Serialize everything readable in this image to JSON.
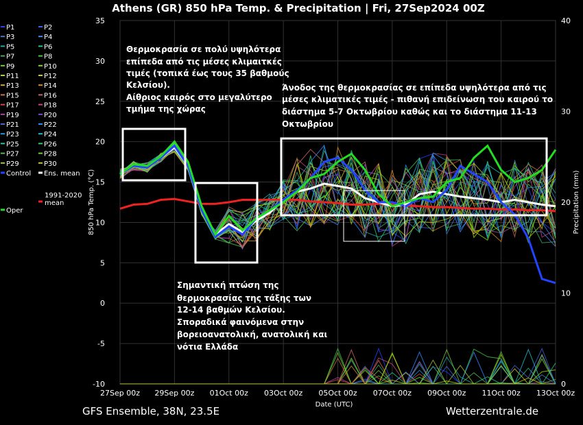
{
  "chart_data": {
    "type": "line",
    "title": "Athens  (GR)  850 hPa Temp. & Precipitation | Fri, 27Sep2024 00Z",
    "xlabel": "Date (UTC)",
    "ylabel": "850 hPa Temp. (°C)",
    "y2label": "Precipitation (mm)",
    "ylim": [
      -10,
      35
    ],
    "y2lim": [
      0,
      40
    ],
    "yticks": [
      "35",
      "30",
      "25",
      "20",
      "15",
      "10",
      "5",
      "0",
      "-5",
      "-10"
    ],
    "y2ticks": [
      "40",
      "30",
      "20",
      "10",
      "0"
    ],
    "xticks": [
      "27Sep 00z",
      "29Sep 00z",
      "01Oct 00z",
      "03Oct 00z",
      "05Oct 00z",
      "07Oct 00z",
      "09Oct 00z",
      "11Oct 00z",
      "13Oct 00z"
    ],
    "x_hours": [
      0,
      12,
      24,
      36,
      48,
      60,
      72,
      84,
      96,
      108,
      120,
      132,
      144,
      156,
      168,
      180,
      192,
      204,
      216,
      228,
      240,
      252,
      264,
      276,
      288,
      300,
      312,
      324,
      336,
      348,
      360,
      372,
      384
    ],
    "series": [
      {
        "name": "Oper",
        "color": "#22dd22",
        "width": 3,
        "values": [
          16,
          17.2,
          17,
          18.2,
          20,
          17.5,
          12,
          8.5,
          10.8,
          9,
          10.5,
          11.5,
          12.5,
          13.8,
          15.5,
          16,
          17.5,
          18.5,
          16.5,
          13.5,
          12,
          12.5,
          13,
          13.2,
          15,
          15.5,
          18,
          19.5,
          16.5,
          15,
          15.5,
          16.5,
          19
        ]
      },
      {
        "name": "Control",
        "color": "#2244ff",
        "width": 3,
        "values": [
          16,
          17,
          16.8,
          18,
          19.5,
          17,
          11.5,
          8.2,
          9.5,
          8.5,
          10.5,
          11.5,
          12.8,
          14,
          15.5,
          17.5,
          18,
          16.5,
          14,
          12.5,
          12.5,
          12,
          13,
          12.5,
          14,
          17,
          16,
          15,
          12.5,
          11,
          8,
          3,
          2.5
        ]
      },
      {
        "name": "Ens. mean",
        "color": "#ffffff",
        "width": 3,
        "values": [
          16,
          17,
          16.8,
          18,
          19.3,
          17,
          11.5,
          8.5,
          9.8,
          8.8,
          10.2,
          11.2,
          12.8,
          13.8,
          14.2,
          14.8,
          14.5,
          14.2,
          13,
          12.5,
          12,
          12.2,
          13.5,
          13.8,
          13.5,
          13.2,
          13,
          12.8,
          12.5,
          12.8,
          12.5,
          12.2,
          12
        ]
      },
      {
        "name": "1991-2020 mean",
        "color": "#ee2222",
        "width": 3,
        "values": [
          11.7,
          12.2,
          12.3,
          12.8,
          12.9,
          12.6,
          12.3,
          12.3,
          12.5,
          12.8,
          12.8,
          12.8,
          12.8,
          12.8,
          12.6,
          12.5,
          12.4,
          12.2,
          12.2,
          12.3,
          12.3,
          12.1,
          12,
          11.9,
          11.9,
          11.8,
          11.7,
          11.7,
          11.6,
          11.6,
          11.5,
          11.5,
          11.4
        ]
      }
    ],
    "legend": [
      "P1",
      "P2",
      "P3",
      "P4",
      "P5",
      "P6",
      "P7",
      "P8",
      "P9",
      "P10",
      "P11",
      "P12",
      "P13",
      "P14",
      "P15",
      "P16",
      "P17",
      "P18",
      "P19",
      "P20",
      "P21",
      "P22",
      "P23",
      "P24",
      "P25",
      "P26",
      "P27",
      "P28",
      "P29",
      "P30",
      "Control",
      "Ens. mean",
      "1991-2020 mean",
      "Oper"
    ],
    "member_colors": [
      "#2244ff",
      "#3366ee",
      "#4477cc",
      "#4488ff",
      "#22aaaa",
      "#22cc88",
      "#44aa66",
      "#44cc44",
      "#66dd22",
      "#88dd00",
      "#aadd00",
      "#cccc22",
      "#ddaa22",
      "#dd8822",
      "#cc7744",
      "#cc6666",
      "#dd4444",
      "#cc4488",
      "#aa44aa",
      "#8844cc",
      "#4466dd",
      "#3388ff",
      "#2299dd",
      "#22bbcc",
      "#22ccaa",
      "#33cc77",
      "#55bb55",
      "#77cc33",
      "#aacc22",
      "#cccc00"
    ],
    "annotations": {
      "a1": [
        "Θερμοκρασία σε πολύ υψηλότερα",
        "επίπεδα από τις μέσες κλιμαιτκές",
        "τιμές (τοπικά έως τους 35 βαθμούς",
        "Κελσίου).",
        "Αίθριος καιρός στο μεγαλύτερο",
        "τμήμα της χώρας"
      ],
      "a2": [
        "Άνοδος της θερμοκρασίας σε επίπεδα υψηλότερα από τις",
        "μέσες κλιματικές τιμές - πιθανή επιδείνωση του καιρού το",
        "διάστημα 5-7 Οκτωβρίου καθώς και το διάστημα 11-13",
        "Οκτωβρίου"
      ],
      "a3": [
        "Σημαντική πτώση της",
        "θερμοκρασίας της τάξης των",
        "12-14 βαθμών Κελσίου.",
        "Σποραδικά φαινόμενα στην",
        "βορειοανατολική, ανατολική και",
        "νότια Ελλάδα"
      ]
    }
  },
  "footer": {
    "left": "GFS Ensemble, 38N, 23.5E",
    "right": "Wetterzentrale.de"
  }
}
